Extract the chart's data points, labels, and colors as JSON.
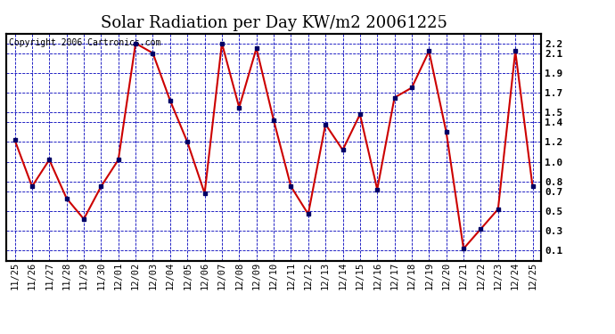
{
  "title": "Solar Radiation per Day KW/m2 20061225",
  "copyright": "Copyright 2006 Cartronics.com",
  "labels": [
    "11/25",
    "11/26",
    "11/27",
    "11/28",
    "11/29",
    "11/30",
    "12/01",
    "12/02",
    "12/03",
    "12/04",
    "12/05",
    "12/06",
    "12/07",
    "12/08",
    "12/09",
    "12/10",
    "12/11",
    "12/12",
    "12/13",
    "12/14",
    "12/15",
    "12/16",
    "12/17",
    "12/18",
    "12/19",
    "12/20",
    "12/21",
    "12/22",
    "12/23",
    "12/24",
    "12/25"
  ],
  "values": [
    1.22,
    0.75,
    1.02,
    0.63,
    0.42,
    0.75,
    1.02,
    2.2,
    2.1,
    1.62,
    1.2,
    0.68,
    2.2,
    1.55,
    2.15,
    1.42,
    0.75,
    0.47,
    1.38,
    1.12,
    1.48,
    0.72,
    1.65,
    1.75,
    2.12,
    1.3,
    0.12,
    0.32,
    0.52,
    2.12,
    0.75
  ],
  "line_color": "#cc0000",
  "marker_color": "#000066",
  "bg_color": "#ffffff",
  "plot_bg_color": "#ffffff",
  "grid_color": "#0000bb",
  "ylim": [
    0.0,
    2.3
  ],
  "yticks": [
    2.2,
    2.1,
    1.9,
    1.7,
    1.5,
    1.4,
    1.2,
    1.0,
    0.8,
    0.7,
    0.5,
    0.3,
    0.1
  ],
  "title_fontsize": 13,
  "copyright_fontsize": 7,
  "tick_fontsize": 8,
  "label_fontsize": 7.5
}
